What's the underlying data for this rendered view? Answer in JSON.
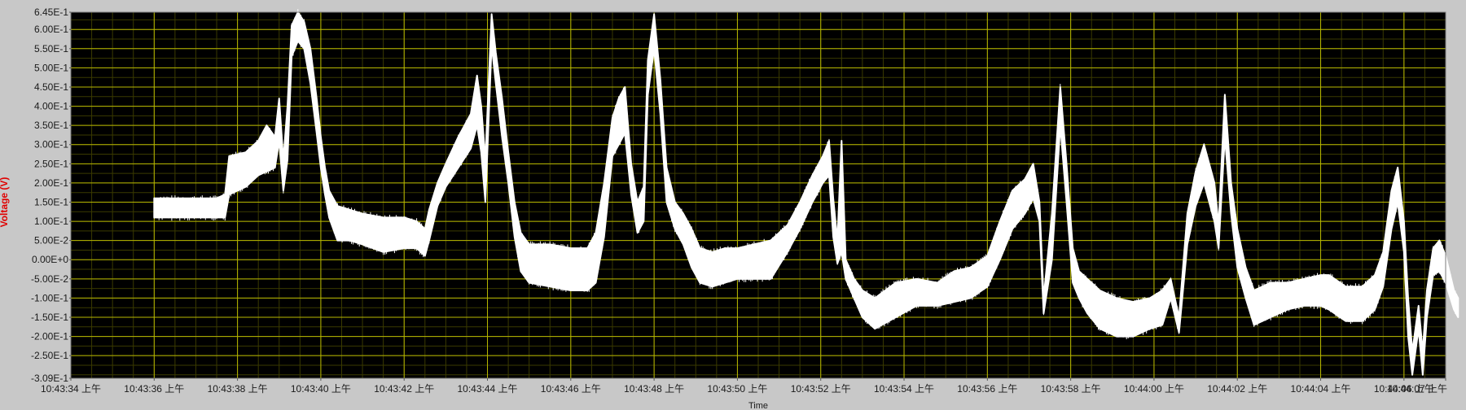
{
  "chart_data": {
    "type": "line",
    "xlabel": "Time",
    "ylabel": "Voltage (V)",
    "x_unit": "seconds",
    "xlim": [
      "10:43:34",
      "10:44:07"
    ],
    "ylim": [
      -0.309,
      0.645
    ],
    "grid": true,
    "colors": {
      "plot_background": "#000000",
      "grid": "#b8b800",
      "trace": "#ffffff",
      "frame": "#c8c8c8",
      "ylabel": "#e00000"
    },
    "y_ticks": [
      "6.45E-1",
      "6.00E-1",
      "5.50E-1",
      "5.00E-1",
      "4.50E-1",
      "4.00E-1",
      "3.50E-1",
      "3.00E-1",
      "2.50E-1",
      "2.00E-1",
      "1.50E-1",
      "1.00E-1",
      "5.00E-2",
      "0.00E+0",
      "-5.00E-2",
      "-1.00E-1",
      "-1.50E-1",
      "-2.00E-1",
      "-2.50E-1",
      "-3.09E-1"
    ],
    "y_tick_values": [
      0.645,
      0.6,
      0.55,
      0.5,
      0.45,
      0.4,
      0.35,
      0.3,
      0.25,
      0.2,
      0.15,
      0.1,
      0.05,
      0,
      -0.05,
      -0.1,
      -0.15,
      -0.2,
      -0.25,
      -0.309
    ],
    "x_ticks": [
      "10:43:34 上午",
      "10:43:36 上午",
      "10:43:38 上午",
      "10:43:40 上午",
      "10:43:42 上午",
      "10:43:44 上午",
      "10:43:46 上午",
      "10:43:48 上午",
      "10:43:50 上午",
      "10:43:52 上午",
      "10:43:54 上午",
      "10:43:56 上午",
      "10:43:58 上午",
      "10:44:00 上午",
      "10:44:02 上午",
      "10:44:04 上午",
      "10:44:06 上午",
      "10:44:07 上午"
    ],
    "x_tick_values": [
      0,
      2,
      4,
      6,
      8,
      10,
      12,
      14,
      16,
      18,
      20,
      22,
      24,
      26,
      28,
      30,
      32,
      33
    ],
    "series": [
      {
        "points": [
          [
            2.0,
            0.11,
            0.16
          ],
          [
            2.5,
            0.11,
            0.16
          ],
          [
            3.0,
            0.11,
            0.16
          ],
          [
            3.5,
            0.11,
            0.16
          ],
          [
            3.7,
            0.11,
            0.17
          ],
          [
            3.8,
            0.17,
            0.27
          ],
          [
            4.2,
            0.19,
            0.28
          ],
          [
            4.5,
            0.22,
            0.31
          ],
          [
            4.7,
            0.23,
            0.35
          ],
          [
            4.9,
            0.24,
            0.32
          ],
          [
            5.0,
            0.31,
            0.42
          ],
          [
            5.1,
            0.18,
            0.26
          ],
          [
            5.2,
            0.26,
            0.4
          ],
          [
            5.3,
            0.53,
            0.61
          ],
          [
            5.45,
            0.57,
            0.645
          ],
          [
            5.6,
            0.55,
            0.62
          ],
          [
            5.75,
            0.46,
            0.55
          ],
          [
            5.9,
            0.33,
            0.42
          ],
          [
            6.0,
            0.24,
            0.32
          ],
          [
            6.1,
            0.17,
            0.24
          ],
          [
            6.2,
            0.11,
            0.18
          ],
          [
            6.4,
            0.05,
            0.14
          ],
          [
            6.7,
            0.05,
            0.13
          ],
          [
            7.0,
            0.04,
            0.12
          ],
          [
            7.5,
            0.02,
            0.11
          ],
          [
            8.0,
            0.03,
            0.11
          ],
          [
            8.3,
            0.03,
            0.1
          ],
          [
            8.5,
            0.01,
            0.08
          ],
          [
            8.6,
            0.05,
            0.13
          ],
          [
            8.8,
            0.14,
            0.2
          ],
          [
            9.0,
            0.19,
            0.25
          ],
          [
            9.3,
            0.24,
            0.32
          ],
          [
            9.6,
            0.29,
            0.38
          ],
          [
            9.75,
            0.35,
            0.48
          ],
          [
            9.85,
            0.28,
            0.4
          ],
          [
            9.95,
            0.15,
            0.26
          ],
          [
            10.1,
            0.56,
            0.64
          ],
          [
            10.2,
            0.46,
            0.54
          ],
          [
            10.35,
            0.32,
            0.42
          ],
          [
            10.5,
            0.2,
            0.28
          ],
          [
            10.65,
            0.06,
            0.15
          ],
          [
            10.8,
            -0.03,
            0.07
          ],
          [
            11.0,
            -0.06,
            0.04
          ],
          [
            11.5,
            -0.07,
            0.04
          ],
          [
            12.0,
            -0.08,
            0.03
          ],
          [
            12.4,
            -0.08,
            0.03
          ],
          [
            12.6,
            -0.06,
            0.07
          ],
          [
            12.8,
            0.06,
            0.2
          ],
          [
            13.0,
            0.27,
            0.37
          ],
          [
            13.15,
            0.3,
            0.42
          ],
          [
            13.3,
            0.33,
            0.45
          ],
          [
            13.45,
            0.17,
            0.25
          ],
          [
            13.6,
            0.07,
            0.15
          ],
          [
            13.75,
            0.1,
            0.19
          ],
          [
            13.85,
            0.43,
            0.52
          ],
          [
            14.0,
            0.55,
            0.64
          ],
          [
            14.15,
            0.38,
            0.47
          ],
          [
            14.3,
            0.15,
            0.24
          ],
          [
            14.5,
            0.08,
            0.15
          ],
          [
            14.7,
            0.04,
            0.12
          ],
          [
            14.9,
            -0.02,
            0.08
          ],
          [
            15.1,
            -0.06,
            0.03
          ],
          [
            15.4,
            -0.07,
            0.02
          ],
          [
            15.7,
            -0.06,
            0.03
          ],
          [
            16.0,
            -0.05,
            0.03
          ],
          [
            16.4,
            -0.05,
            0.04
          ],
          [
            16.8,
            -0.05,
            0.05
          ],
          [
            17.2,
            0.02,
            0.09
          ],
          [
            17.5,
            0.08,
            0.15
          ],
          [
            17.8,
            0.15,
            0.22
          ],
          [
            18.05,
            0.2,
            0.27
          ],
          [
            18.2,
            0.22,
            0.31
          ],
          [
            18.3,
            0.06,
            0.16
          ],
          [
            18.4,
            -0.01,
            0.05
          ],
          [
            18.5,
            0.02,
            0.31
          ],
          [
            18.6,
            -0.05,
            0.0
          ],
          [
            18.8,
            -0.1,
            -0.05
          ],
          [
            19.0,
            -0.15,
            -0.08
          ],
          [
            19.3,
            -0.18,
            -0.1
          ],
          [
            19.8,
            -0.15,
            -0.06
          ],
          [
            20.3,
            -0.12,
            -0.05
          ],
          [
            20.8,
            -0.12,
            -0.06
          ],
          [
            21.2,
            -0.11,
            -0.03
          ],
          [
            21.6,
            -0.1,
            -0.02
          ],
          [
            22.0,
            -0.07,
            0.01
          ],
          [
            22.3,
            0.0,
            0.1
          ],
          [
            22.6,
            0.08,
            0.18
          ],
          [
            22.9,
            0.12,
            0.21
          ],
          [
            23.1,
            0.16,
            0.25
          ],
          [
            23.25,
            0.1,
            0.15
          ],
          [
            23.35,
            -0.14,
            -0.1
          ],
          [
            23.55,
            0.0,
            0.12
          ],
          [
            23.75,
            0.35,
            0.45
          ],
          [
            23.9,
            0.15,
            0.25
          ],
          [
            24.05,
            -0.06,
            0.03
          ],
          [
            24.2,
            -0.1,
            -0.03
          ],
          [
            24.4,
            -0.14,
            -0.05
          ],
          [
            24.7,
            -0.18,
            -0.08
          ],
          [
            25.1,
            -0.2,
            -0.1
          ],
          [
            25.5,
            -0.2,
            -0.11
          ],
          [
            25.9,
            -0.18,
            -0.1
          ],
          [
            26.2,
            -0.17,
            -0.08
          ],
          [
            26.4,
            -0.1,
            -0.05
          ],
          [
            26.6,
            -0.19,
            -0.15
          ],
          [
            26.8,
            0.04,
            0.12
          ],
          [
            27.0,
            0.14,
            0.23
          ],
          [
            27.2,
            0.2,
            0.3
          ],
          [
            27.45,
            0.1,
            0.2
          ],
          [
            27.55,
            0.03,
            0.09
          ],
          [
            27.7,
            0.32,
            0.43
          ],
          [
            27.85,
            0.12,
            0.2
          ],
          [
            28.0,
            -0.02,
            0.08
          ],
          [
            28.2,
            -0.1,
            -0.02
          ],
          [
            28.4,
            -0.17,
            -0.08
          ],
          [
            28.8,
            -0.15,
            -0.06
          ],
          [
            29.2,
            -0.13,
            -0.06
          ],
          [
            29.6,
            -0.12,
            -0.05
          ],
          [
            30.0,
            -0.12,
            -0.04
          ],
          [
            30.2,
            -0.13,
            -0.04
          ],
          [
            30.6,
            -0.16,
            -0.07
          ],
          [
            31.0,
            -0.16,
            -0.07
          ],
          [
            31.3,
            -0.13,
            -0.04
          ],
          [
            31.5,
            -0.07,
            0.02
          ],
          [
            31.7,
            0.08,
            0.18
          ],
          [
            31.85,
            0.15,
            0.24
          ],
          [
            32.0,
            0.02,
            0.1
          ],
          [
            32.1,
            -0.2,
            -0.1
          ],
          [
            32.2,
            -0.3,
            -0.24
          ],
          [
            32.35,
            -0.18,
            -0.12
          ],
          [
            32.45,
            -0.3,
            -0.24
          ],
          [
            32.55,
            -0.15,
            -0.08
          ],
          [
            32.7,
            -0.04,
            0.03
          ],
          [
            32.85,
            -0.03,
            0.05
          ],
          [
            33.0,
            -0.06,
            0.01
          ],
          [
            33.2,
            -0.13,
            -0.08
          ],
          [
            33.3,
            -0.15,
            -0.1
          ]
        ]
      }
    ]
  }
}
